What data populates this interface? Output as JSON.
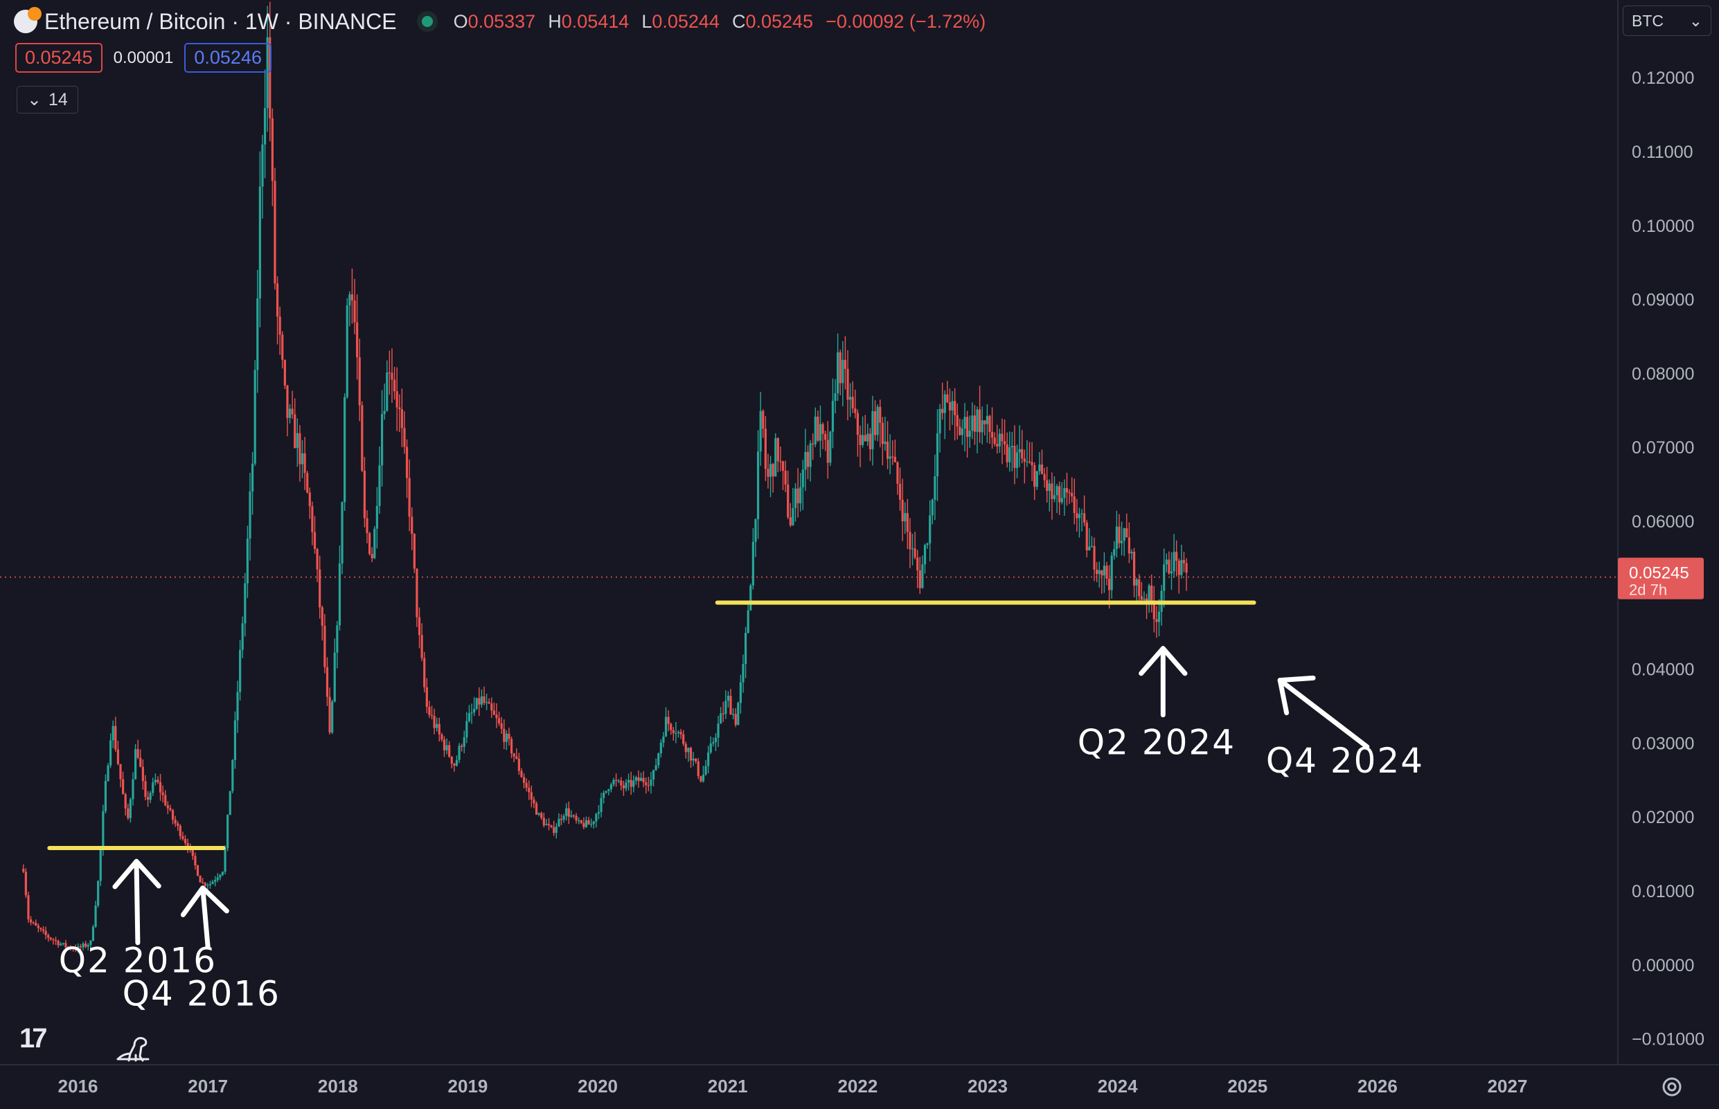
{
  "header": {
    "symbol_title": "Ethereum / Bitcoin · 1W · BINANCE",
    "ohlc": [
      {
        "key": "O",
        "value": "0.05337"
      },
      {
        "key": "H",
        "value": "0.05414"
      },
      {
        "key": "L",
        "value": "0.05244"
      },
      {
        "key": "C",
        "value": "0.05245"
      }
    ],
    "change": "−0.00092 (−1.72%)"
  },
  "quote": {
    "sell": "0.05245",
    "spread": "0.00001",
    "buy": "0.05246"
  },
  "indicators": {
    "count": "14"
  },
  "currency_selector": "BTC",
  "colors": {
    "background": "#161722",
    "up": "#26a69a",
    "down": "#ef5350",
    "support_line": "#f5e05a",
    "annotation": "#ffffff",
    "price_tag": "#e35a5a"
  },
  "icons": {
    "symbol": "eth-btc-coin-icon",
    "logo": "tradingview-logo-icon",
    "replay": "dinosaur-icon",
    "settings": "gear-icon"
  },
  "chart_data": {
    "type": "candlestick",
    "x_axis_ticks": [
      "2016",
      "2017",
      "2018",
      "2019",
      "2020",
      "2021",
      "2022",
      "2023",
      "2024",
      "2025",
      "2026",
      "2027"
    ],
    "y_axis_ticks": [
      "0.12000",
      "0.11000",
      "0.10000",
      "0.09000",
      "0.08000",
      "0.07000",
      "0.06000",
      "0.04000",
      "0.03000",
      "0.02000",
      "0.01000",
      "0.00000",
      "−0.01000"
    ],
    "ylim": [
      -0.0135,
      0.1305
    ],
    "xlim": [
      2015.4,
      2027.85
    ],
    "last_price": {
      "value": 0.05245,
      "label": "0.05245",
      "countdown": "2d 7h"
    },
    "price_path": [
      [
        2015.58,
        0.013
      ],
      [
        2015.62,
        0.006
      ],
      [
        2015.75,
        0.004
      ],
      [
        2015.9,
        0.0025
      ],
      [
        2016.0,
        0.0022
      ],
      [
        2016.1,
        0.003
      ],
      [
        2016.16,
        0.012
      ],
      [
        2016.2,
        0.022
      ],
      [
        2016.26,
        0.033
      ],
      [
        2016.32,
        0.026
      ],
      [
        2016.38,
        0.019
      ],
      [
        2016.45,
        0.03
      ],
      [
        2016.52,
        0.022
      ],
      [
        2016.6,
        0.025
      ],
      [
        2016.72,
        0.02
      ],
      [
        2016.85,
        0.016
      ],
      [
        2016.95,
        0.011
      ],
      [
        2017.02,
        0.011
      ],
      [
        2017.12,
        0.013
      ],
      [
        2017.2,
        0.03
      ],
      [
        2017.28,
        0.05
      ],
      [
        2017.35,
        0.07
      ],
      [
        2017.41,
        0.11
      ],
      [
        2017.46,
        0.125
      ],
      [
        2017.52,
        0.09
      ],
      [
        2017.6,
        0.075
      ],
      [
        2017.7,
        0.07
      ],
      [
        2017.8,
        0.06
      ],
      [
        2017.88,
        0.045
      ],
      [
        2017.94,
        0.03
      ],
      [
        2018.02,
        0.055
      ],
      [
        2018.08,
        0.095
      ],
      [
        2018.14,
        0.085
      ],
      [
        2018.2,
        0.06
      ],
      [
        2018.27,
        0.055
      ],
      [
        2018.34,
        0.075
      ],
      [
        2018.4,
        0.082
      ],
      [
        2018.47,
        0.075
      ],
      [
        2018.55,
        0.062
      ],
      [
        2018.62,
        0.045
      ],
      [
        2018.68,
        0.035
      ],
      [
        2018.78,
        0.031
      ],
      [
        2018.9,
        0.027
      ],
      [
        2019.0,
        0.033
      ],
      [
        2019.1,
        0.036
      ],
      [
        2019.22,
        0.033
      ],
      [
        2019.34,
        0.029
      ],
      [
        2019.45,
        0.024
      ],
      [
        2019.55,
        0.02
      ],
      [
        2019.65,
        0.018
      ],
      [
        2019.75,
        0.021
      ],
      [
        2019.85,
        0.019
      ],
      [
        2019.95,
        0.019
      ],
      [
        2020.1,
        0.025
      ],
      [
        2020.2,
        0.024
      ],
      [
        2020.32,
        0.025
      ],
      [
        2020.42,
        0.025
      ],
      [
        2020.52,
        0.033
      ],
      [
        2020.6,
        0.032
      ],
      [
        2020.7,
        0.029
      ],
      [
        2020.8,
        0.025
      ],
      [
        2020.9,
        0.031
      ],
      [
        2021.0,
        0.036
      ],
      [
        2021.06,
        0.033
      ],
      [
        2021.12,
        0.04
      ],
      [
        2021.2,
        0.058
      ],
      [
        2021.26,
        0.075
      ],
      [
        2021.3,
        0.065
      ],
      [
        2021.38,
        0.07
      ],
      [
        2021.48,
        0.06
      ],
      [
        2021.58,
        0.067
      ],
      [
        2021.68,
        0.073
      ],
      [
        2021.78,
        0.068
      ],
      [
        2021.84,
        0.082
      ],
      [
        2021.9,
        0.079
      ],
      [
        2021.98,
        0.073
      ],
      [
        2022.06,
        0.07
      ],
      [
        2022.14,
        0.074
      ],
      [
        2022.24,
        0.07
      ],
      [
        2022.32,
        0.064
      ],
      [
        2022.4,
        0.057
      ],
      [
        2022.48,
        0.052
      ],
      [
        2022.56,
        0.061
      ],
      [
        2022.62,
        0.073
      ],
      [
        2022.7,
        0.077
      ],
      [
        2022.76,
        0.072
      ],
      [
        2022.84,
        0.073
      ],
      [
        2022.92,
        0.074
      ],
      [
        2023.02,
        0.072
      ],
      [
        2023.12,
        0.069
      ],
      [
        2023.22,
        0.069
      ],
      [
        2023.32,
        0.067
      ],
      [
        2023.42,
        0.066
      ],
      [
        2023.5,
        0.063
      ],
      [
        2023.6,
        0.063
      ],
      [
        2023.7,
        0.061
      ],
      [
        2023.78,
        0.056
      ],
      [
        2023.86,
        0.054
      ],
      [
        2023.94,
        0.052
      ],
      [
        2024.0,
        0.059
      ],
      [
        2024.08,
        0.057
      ],
      [
        2024.16,
        0.05
      ],
      [
        2024.24,
        0.05
      ],
      [
        2024.3,
        0.047
      ],
      [
        2024.36,
        0.053
      ],
      [
        2024.42,
        0.055
      ],
      [
        2024.5,
        0.053
      ],
      [
        2024.54,
        0.05245
      ]
    ],
    "support_lines": [
      {
        "from": 2015.78,
        "to": 2017.12,
        "y": 0.0158
      },
      {
        "from": 2020.92,
        "to": 2025.05,
        "y": 0.049
      }
    ],
    "annotations": [
      {
        "label": "Q2 2016",
        "x": 2016.46,
        "y": -0.001,
        "arrow_from": [
          2016.46,
          0.003
        ],
        "arrow_to": [
          2016.45,
          0.014
        ],
        "direction": "up"
      },
      {
        "label": "Q4 2016",
        "x": 2016.95,
        "y": -0.0055,
        "arrow_from": [
          2017.0,
          0.0024
        ],
        "arrow_to": [
          2016.96,
          0.0104
        ],
        "direction": "up-left"
      },
      {
        "label": "Q2 2024",
        "x": 2024.3,
        "y": 0.0285,
        "arrow_from": [
          2024.35,
          0.0338
        ],
        "arrow_to": [
          2024.35,
          0.0428
        ],
        "direction": "up"
      },
      {
        "label": "Q4 2024",
        "x": 2025.75,
        "y": 0.026,
        "arrow_from": [
          2025.92,
          0.0295
        ],
        "arrow_to": [
          2025.25,
          0.0385
        ],
        "direction": "up-left"
      }
    ]
  }
}
